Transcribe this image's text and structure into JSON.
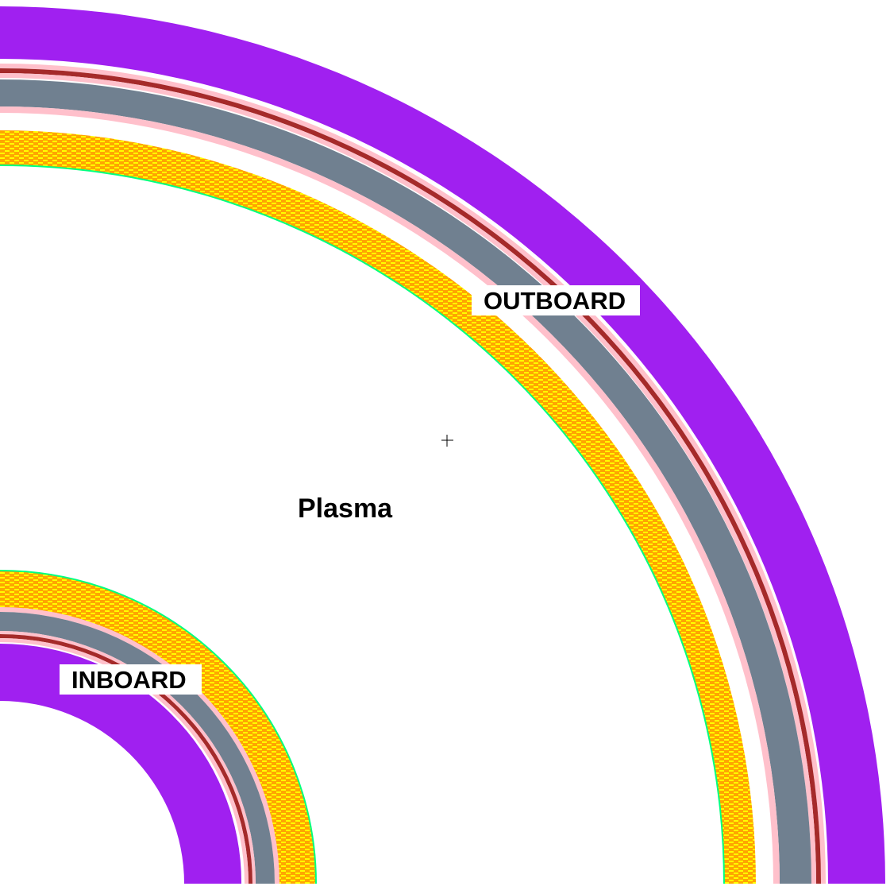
{
  "labels": {
    "outboard": "OUTBOARD",
    "inboard": "INBOARD",
    "plasma": "Plasma"
  },
  "colors": {
    "background": "#ffffff",
    "outer_shield": "#a020f0",
    "vacuum_vessel": "#708090",
    "thin_red_layer": "#a52a2a",
    "thin_pink_layer": "#ffc0cb",
    "blanket_orange": "#ffa500",
    "blanket_yellow": "#ffff00",
    "first_wall_green": "#00ff7f",
    "label_text": "#000000"
  },
  "crosshair_icon": "plus-crosshair"
}
